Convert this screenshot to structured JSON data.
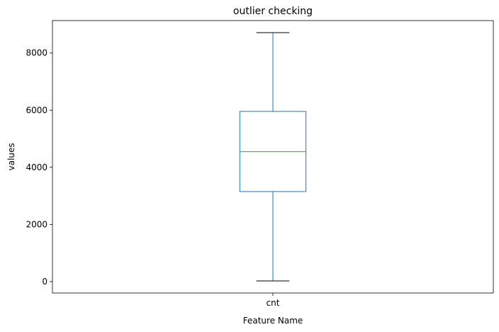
{
  "chart_data": {
    "type": "box",
    "title": "outlier checking",
    "xlabel": "Feature Name",
    "ylabel": "values",
    "categories": [
      "cnt"
    ],
    "boxes": [
      {
        "category": "cnt",
        "whisker_low": 22,
        "q1": 3152,
        "median": 4548,
        "q3": 5956,
        "whisker_high": 8714
      }
    ],
    "ylim": [
      -400,
      9136
    ],
    "yticks": [
      0,
      2000,
      4000,
      6000,
      8000
    ],
    "grid": false,
    "colors": {
      "box": "#1f77b4",
      "whisker": "#1f77b4",
      "cap": "#000000",
      "median": "#2ca02c",
      "axes": "#000000"
    }
  }
}
